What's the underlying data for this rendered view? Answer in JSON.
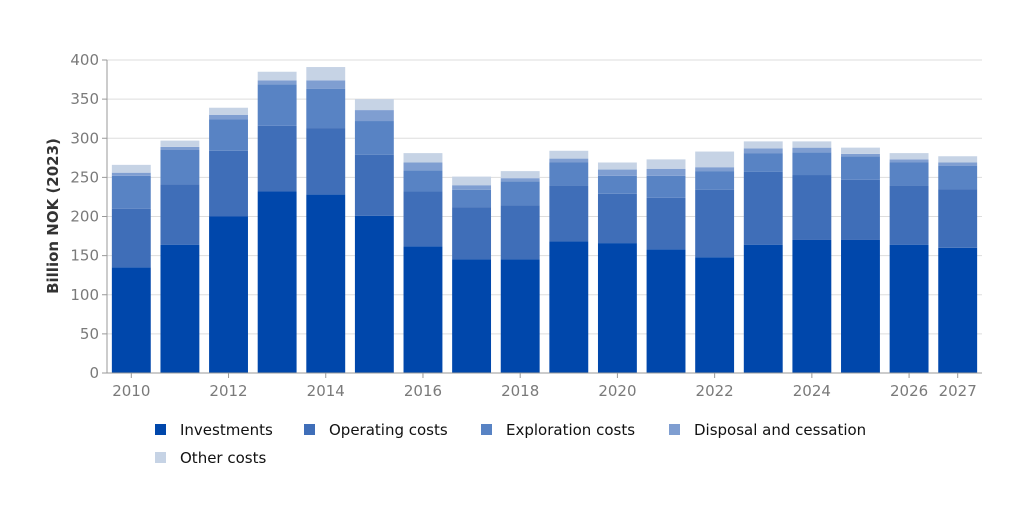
{
  "chart_data": {
    "type": "bar",
    "stacked": true,
    "title": "",
    "xlabel": "",
    "ylabel": "Billion NOK (2023)",
    "ylim": [
      0,
      400
    ],
    "yticks": [
      0,
      50,
      100,
      150,
      200,
      250,
      300,
      350,
      400
    ],
    "grid": "horizontal",
    "legend_position": "bottom",
    "categories": [
      "2010",
      "2011",
      "2012",
      "2013",
      "2014",
      "2015",
      "2016",
      "2017",
      "2018",
      "2019",
      "2020",
      "2021",
      "2022",
      "2023",
      "2024",
      "2025",
      "2026",
      "2027"
    ],
    "xtick_labels": [
      "2010",
      "2012",
      "2014",
      "2016",
      "2018",
      "2020",
      "2022",
      "2024",
      "2026",
      "2027"
    ],
    "series": [
      {
        "name": "Investments",
        "color": "#0047ab",
        "values": [
          135,
          164,
          200,
          232,
          228,
          201,
          162,
          145,
          145,
          168,
          166,
          158,
          148,
          164,
          170,
          170,
          164,
          160
        ]
      },
      {
        "name": "Operating costs",
        "color": "#3f6eb8",
        "values": [
          75,
          77,
          84,
          84,
          85,
          78,
          70,
          67,
          69,
          71,
          63,
          66,
          86,
          93,
          83,
          77,
          75,
          75
        ]
      },
      {
        "name": "Exploration costs",
        "color": "#5883c4",
        "values": [
          42,
          44,
          40,
          53,
          50,
          43,
          27,
          22,
          31,
          30,
          23,
          28,
          24,
          24,
          29,
          30,
          30,
          30
        ]
      },
      {
        "name": "Disposal and cessation",
        "color": "#7f9ed1",
        "values": [
          4,
          4,
          6,
          5,
          11,
          14,
          10,
          6,
          4,
          5,
          8,
          9,
          5,
          6,
          6,
          3,
          4,
          4
        ]
      },
      {
        "name": "Other costs",
        "color": "#c6d3e5",
        "values": [
          10,
          8,
          9,
          11,
          17,
          14,
          12,
          11,
          9,
          10,
          9,
          12,
          20,
          9,
          8,
          8,
          8,
          8
        ]
      }
    ]
  }
}
